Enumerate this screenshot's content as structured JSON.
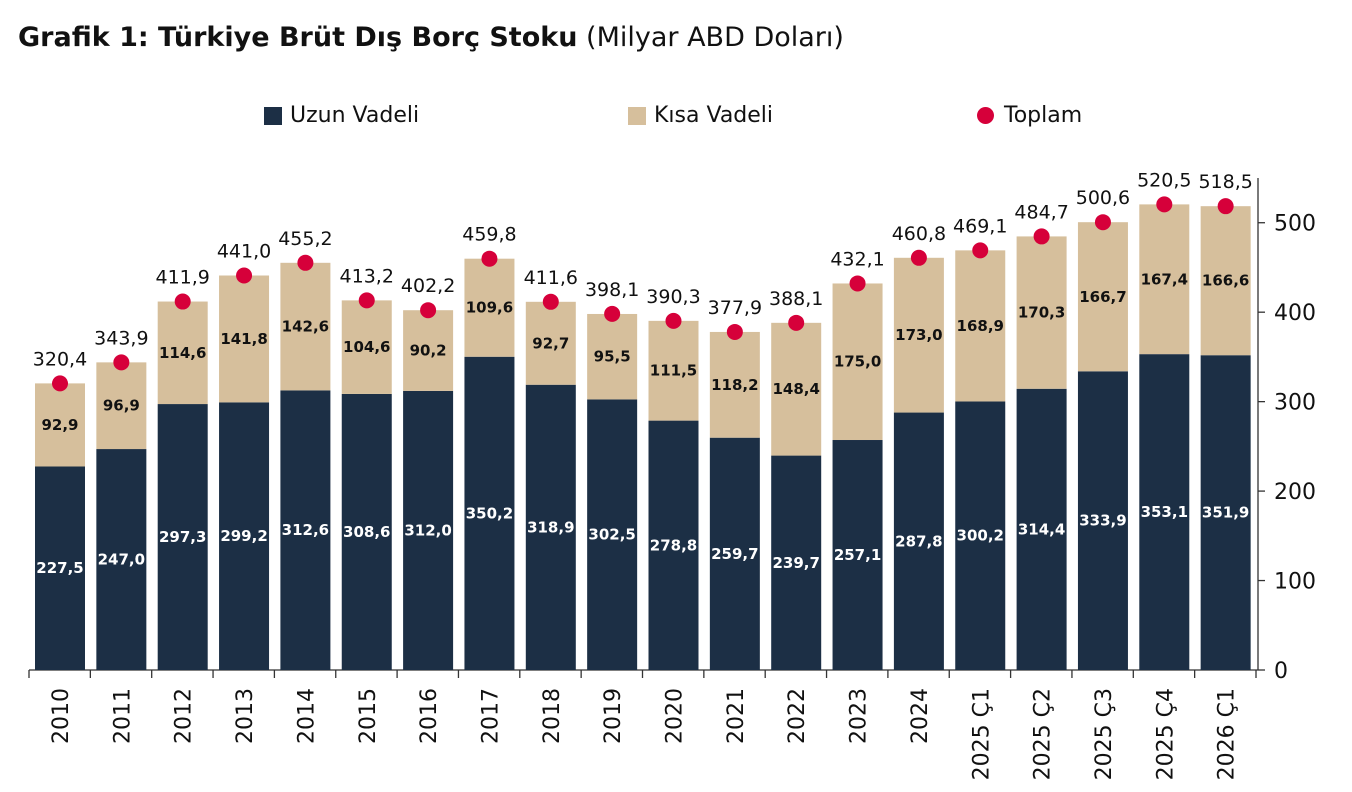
{
  "title": {
    "bold": "Grafik 1: Türkiye Brüt Dış Borç Stoku",
    "unit": "(Milyar ABD Doları)"
  },
  "legend": {
    "long_term": "Uzun Vadeli",
    "short_term": "Kısa Vadeli",
    "total": "Toplam"
  },
  "colors": {
    "long_term": "#1c2f45",
    "short_term": "#d6bf9c",
    "total": "#d6003a"
  },
  "chart_data": {
    "type": "bar",
    "stacked": true,
    "title": "Grafik 1: Türkiye Brüt Dış Borç Stoku (Milyar ABD Doları)",
    "categories": [
      "2010",
      "2011",
      "2012",
      "2013",
      "2014",
      "2015",
      "2016",
      "2017",
      "2018",
      "2019",
      "2020",
      "2021",
      "2022",
      "2023",
      "2024",
      "2025 Ç1",
      "2025 Ç2",
      "2025 Ç3",
      "2025 Ç4",
      "2026 Ç1"
    ],
    "series": [
      {
        "name": "Uzun Vadeli",
        "values": [
          227.5,
          247.0,
          297.3,
          299.2,
          312.6,
          308.6,
          312.0,
          350.2,
          318.9,
          302.5,
          278.8,
          259.7,
          239.7,
          257.1,
          287.8,
          300.2,
          314.4,
          333.9,
          353.1,
          351.9
        ],
        "labels": [
          "227,5",
          "247,0",
          "297,3",
          "299,2",
          "312,6",
          "308,6",
          "312,0",
          "350,2",
          "318,9",
          "302,5",
          "278,8",
          "259,7",
          "239,7",
          "257,1",
          "287,8",
          "300,2",
          "314,4",
          "333,9",
          "353,1",
          "351,9"
        ]
      },
      {
        "name": "Kısa Vadeli",
        "values": [
          92.9,
          96.9,
          114.6,
          141.8,
          142.6,
          104.6,
          90.2,
          109.6,
          92.7,
          95.5,
          111.5,
          118.2,
          148.4,
          175.0,
          173.0,
          168.9,
          170.3,
          166.7,
          167.4,
          166.6
        ],
        "labels": [
          "92,9",
          "96,9",
          "114,6",
          "141,8",
          "142,6",
          "104,6",
          "90,2",
          "109,6",
          "92,7",
          "95,5",
          "111,5",
          "118,2",
          "148,4",
          "175,0",
          "173,0",
          "168,9",
          "170,3",
          "166,7",
          "167,4",
          "166,6"
        ]
      },
      {
        "name": "Toplam",
        "type": "scatter",
        "values": [
          320.4,
          343.9,
          411.9,
          441.0,
          455.2,
          413.2,
          402.2,
          459.8,
          411.6,
          398.1,
          390.3,
          377.9,
          388.1,
          432.1,
          460.8,
          469.1,
          484.7,
          500.6,
          520.5,
          518.5
        ],
        "labels": [
          "320,4",
          "343,9",
          "411,9",
          "441,0",
          "455,2",
          "413,2",
          "402,2",
          "459,8",
          "411,6",
          "398,1",
          "390,3",
          "377,9",
          "388,1",
          "432,1",
          "460,8",
          "469,1",
          "484,7",
          "500,6",
          "520,5",
          "518,5"
        ]
      }
    ],
    "ylim": [
      0,
      550
    ],
    "yticks": [
      0,
      100,
      200,
      300,
      400,
      500
    ],
    "y_axis_side": "right",
    "legend_position": "top",
    "grid": false
  }
}
